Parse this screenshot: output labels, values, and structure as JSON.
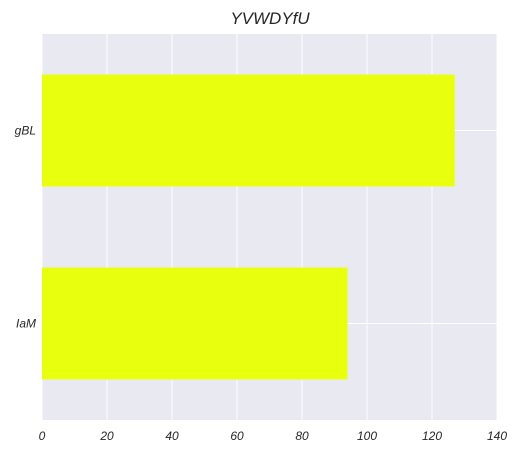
{
  "chart_data": {
    "type": "bar",
    "orientation": "horizontal",
    "title": "YVWDYfU",
    "xlabel": "",
    "ylabel": "",
    "categories": [
      "gBL",
      "IaM"
    ],
    "values": [
      127,
      94
    ],
    "xlim": [
      0,
      140
    ],
    "xticks": [
      0,
      20,
      40,
      60,
      80,
      100,
      120,
      140
    ],
    "grid": true,
    "bar_color": "#e8ff0d",
    "background_color": "#e9e9f1",
    "grid_color": "#ffffff"
  }
}
